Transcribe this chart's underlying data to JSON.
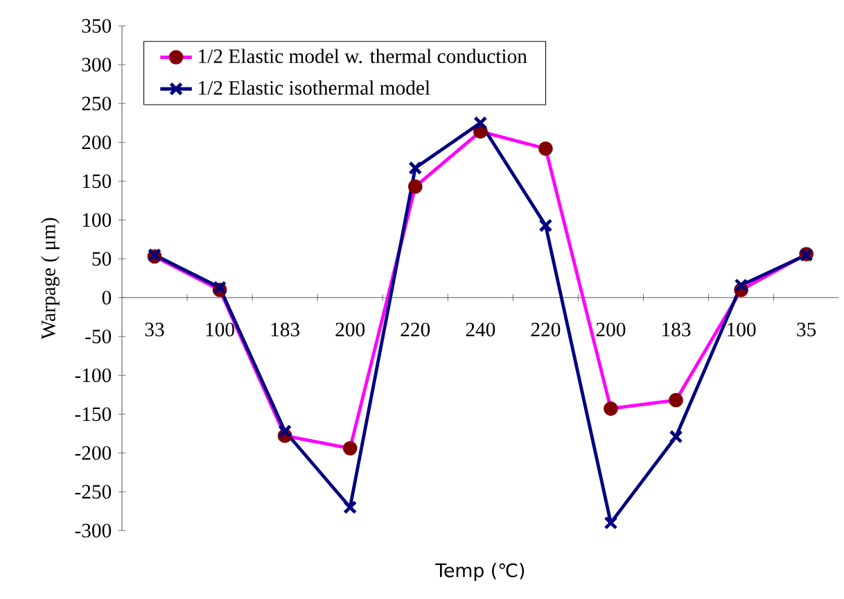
{
  "chart_data": {
    "type": "line",
    "xlabel": "Temp (℃)",
    "ylabel": "Warpage ( μm)",
    "categories": [
      "33",
      "100",
      "183",
      "200",
      "220",
      "240",
      "220",
      "200",
      "183",
      "100",
      "35"
    ],
    "series": [
      {
        "name": "1/2 Elastic model w. thermal conduction",
        "color": "#ff00ff",
        "marker": "circle",
        "values": [
          53,
          10,
          -178,
          -194,
          143,
          214,
          192,
          -143,
          -132,
          10,
          56
        ]
      },
      {
        "name": "1/2 Elastic isothermal model",
        "color": "#000080",
        "marker": "cross",
        "values": [
          55,
          13,
          -172,
          -270,
          167,
          225,
          93,
          -290,
          -179,
          16,
          55
        ]
      }
    ],
    "ylim": [
      -300,
      350
    ],
    "yticks": [
      -300,
      -250,
      -200,
      -150,
      -100,
      -50,
      0,
      50,
      100,
      150,
      200,
      250,
      300,
      350
    ],
    "legend": "top left",
    "grid": false
  }
}
